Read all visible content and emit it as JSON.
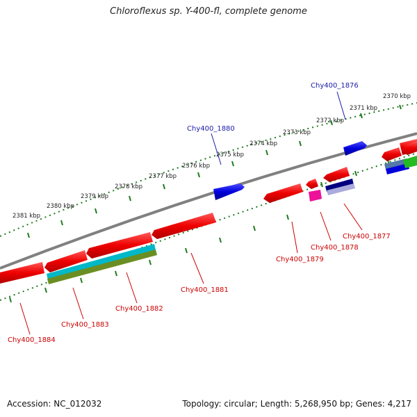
{
  "title": "Chloroflexus sp. Y-400-fl, complete genome",
  "accession_label": "Accession: NC_012032",
  "meta_label": "Topology: circular; Length: 5,268,950 bp; Genes: 4,217",
  "colors": {
    "backbone": "#808080",
    "ticks": "#1f7a1f",
    "label_forward": "#1a1aa8",
    "label_reverse": "#cc0000",
    "gene_red": "#ee0000",
    "gene_blue": "#0000dd",
    "gene_cyan": "#00b8c8",
    "gene_olive": "#6b8e23",
    "gene_magenta": "#ee1199",
    "gene_navy": "#000080",
    "gene_green": "#22bb22",
    "gene_steel": "#5577aa"
  },
  "kbp_labels": [
    {
      "id": "2370",
      "text": "2370 kbp"
    },
    {
      "id": "2371",
      "text": "2371 kbp"
    },
    {
      "id": "2372",
      "text": "2372 kbp"
    },
    {
      "id": "2373",
      "text": "2373 kbp"
    },
    {
      "id": "2374",
      "text": "2374 kbp"
    },
    {
      "id": "2375",
      "text": "2375 kbp"
    },
    {
      "id": "2376",
      "text": "2376 kbp"
    },
    {
      "id": "2377",
      "text": "2377 kbp"
    },
    {
      "id": "2378",
      "text": "2378 kbp"
    },
    {
      "id": "2379",
      "text": "2379 kbp"
    },
    {
      "id": "2380",
      "text": "2380 kbp"
    },
    {
      "id": "2381",
      "text": "2381 kbp"
    }
  ],
  "gene_labels": [
    {
      "id": "1876",
      "text": "Chy400_1876",
      "strand": "forward"
    },
    {
      "id": "1877",
      "text": "Chy400_1877",
      "strand": "reverse"
    },
    {
      "id": "1878",
      "text": "Chy400_1878",
      "strand": "reverse"
    },
    {
      "id": "1879",
      "text": "Chy400_1879",
      "strand": "reverse"
    },
    {
      "id": "1880",
      "text": "Chy400_1880",
      "strand": "forward"
    },
    {
      "id": "1881",
      "text": "Chy400_1881",
      "strand": "reverse"
    },
    {
      "id": "1882",
      "text": "Chy400_1882",
      "strand": "reverse"
    },
    {
      "id": "1883",
      "text": "Chy400_1883",
      "strand": "reverse"
    },
    {
      "id": "1884",
      "text": "Chy400_1884",
      "strand": "reverse"
    }
  ]
}
